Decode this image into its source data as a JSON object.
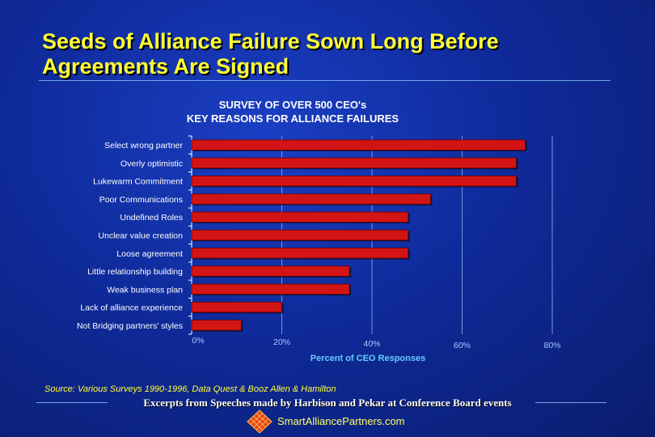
{
  "slide": {
    "title_line1": "Seeds of Alliance Failure Sown Long Before",
    "title_line2": "Agreements Are Signed",
    "source": "Source: Various Surveys 1990-1996, Data Quest & Booz Allen & Hamilton",
    "footer": "Excerpts from Speeches made by Harbison and Pekar at Conference Board events",
    "website": "SmartAlliancePartners.com",
    "logo_icon": "diamond-logo-icon"
  },
  "chart_data": {
    "type": "bar",
    "orientation": "horizontal",
    "title_line1": "SURVEY OF OVER 500 CEO's",
    "title_line2": "KEY REASONS FOR ALLIANCE FAILURES",
    "xlabel": "Percent of CEO Responses",
    "ylabel": "",
    "categories": [
      "Select wrong partner",
      "Overly optimistic",
      "Lukewarm Commitment",
      "Poor Communications",
      "Undefined Roles",
      "Unclear value creation",
      "Loose agreement",
      "Little relationship building",
      "Weak business plan",
      "Lack of alliance experience",
      "Not Bridging partners' styles"
    ],
    "values": [
      74,
      72,
      72,
      53,
      48,
      48,
      48,
      35,
      35,
      20,
      11
    ],
    "xlim": [
      0,
      80
    ],
    "xticks": [
      "0%",
      "20%",
      "40%",
      "60%",
      "80%"
    ],
    "grid": "vertical",
    "bar_color": "#d31414",
    "label_color": "#ffffff",
    "axis_label_color": "#66ccff"
  }
}
